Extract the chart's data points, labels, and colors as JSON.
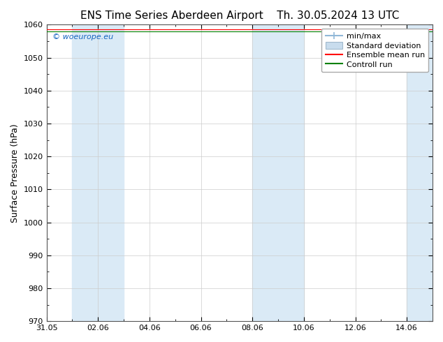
{
  "title": "ENS Time Series Aberdeen Airport",
  "date_str": "Th. 30.05.2024 13 UTC",
  "ylabel": "Surface Pressure (hPa)",
  "ylim": [
    970,
    1060
  ],
  "yticks": [
    970,
    980,
    990,
    1000,
    1010,
    1020,
    1030,
    1040,
    1050,
    1060
  ],
  "xlim": [
    0,
    15
  ],
  "xtick_labels": [
    "31.05",
    "02.06",
    "04.06",
    "06.06",
    "08.06",
    "10.06",
    "12.06",
    "14.06"
  ],
  "xtick_positions": [
    0,
    2,
    4,
    6,
    8,
    10,
    12,
    14
  ],
  "shaded_regions": [
    {
      "start": 1,
      "end": 3,
      "color": "#daeaf6"
    },
    {
      "start": 8,
      "end": 10,
      "color": "#daeaf6"
    },
    {
      "start": 14,
      "end": 15,
      "color": "#daeaf6"
    }
  ],
  "line_y": 1058.5,
  "watermark": "© woeurope.eu",
  "watermark_color": "#1565c0",
  "bg_color": "#ffffff",
  "plot_bg_color": "#ffffff",
  "legend_items": [
    {
      "label": "min/max",
      "color": "#90b8d8",
      "type": "errorbar"
    },
    {
      "label": "Standard deviation",
      "color": "#c8dced",
      "type": "box"
    },
    {
      "label": "Ensemble mean run",
      "color": "#ff0000",
      "type": "line"
    },
    {
      "label": "Controll run",
      "color": "#008000",
      "type": "line"
    }
  ],
  "grid_color": "#cccccc",
  "title_fontsize": 11,
  "axis_label_fontsize": 9,
  "tick_fontsize": 8,
  "legend_fontsize": 8
}
